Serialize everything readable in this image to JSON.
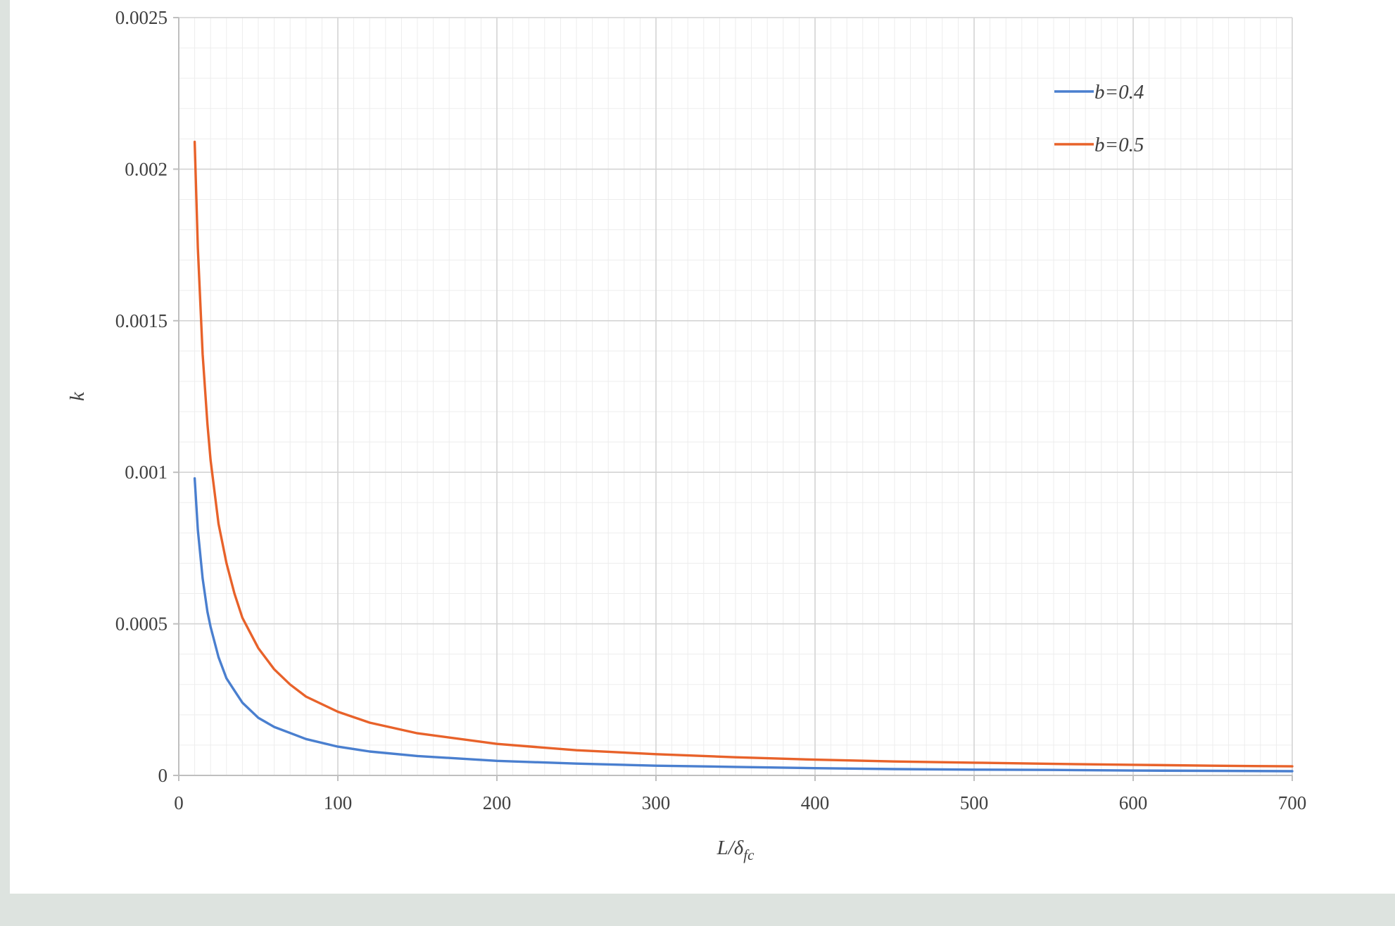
{
  "chart_data": {
    "type": "line",
    "xlabel_main": "L/δ",
    "xlabel_sub": "fc",
    "ylabel": "k",
    "xlim": [
      0,
      700
    ],
    "ylim": [
      0,
      0.0025
    ],
    "x_ticks": [
      "0",
      "100",
      "200",
      "300",
      "400",
      "500",
      "600",
      "700"
    ],
    "y_ticks": [
      "0",
      "0.0005",
      "0.001",
      "0.0015",
      "0.002",
      "0.0025"
    ],
    "grid": true,
    "legend_position": "top-right",
    "series": [
      {
        "name": "b=0.4",
        "color": "#4a7fcf",
        "x": [
          10,
          12,
          15,
          18,
          20,
          25,
          30,
          35,
          40,
          50,
          60,
          70,
          80,
          100,
          120,
          150,
          200,
          250,
          300,
          350,
          400,
          450,
          500,
          550,
          600,
          650,
          700
        ],
        "y": [
          0.00098,
          0.00081,
          0.00065,
          0.00054,
          0.00049,
          0.00039,
          0.00032,
          0.00028,
          0.00024,
          0.00019,
          0.00016,
          0.00014,
          0.00012,
          9.5e-05,
          7.9e-05,
          6.4e-05,
          4.8e-05,
          3.9e-05,
          3.2e-05,
          2.8e-05,
          2.4e-05,
          2.1e-05,
          1.9e-05,
          1.8e-05,
          1.6e-05,
          1.5e-05,
          1.4e-05
        ]
      },
      {
        "name": "b=0.5",
        "color": "#e8622a",
        "x": [
          10,
          12,
          15,
          18,
          20,
          25,
          30,
          35,
          40,
          50,
          60,
          70,
          80,
          100,
          120,
          150,
          200,
          250,
          300,
          350,
          400,
          450,
          500,
          550,
          600,
          650,
          700
        ],
        "y": [
          0.00209,
          0.00174,
          0.00139,
          0.00116,
          0.00104,
          0.00083,
          0.0007,
          0.0006,
          0.00052,
          0.00042,
          0.00035,
          0.0003,
          0.00026,
          0.00021,
          0.000174,
          0.000139,
          0.000104,
          8.3e-05,
          7e-05,
          6e-05,
          5.2e-05,
          4.6e-05,
          4.2e-05,
          3.8e-05,
          3.5e-05,
          3.2e-05,
          3e-05
        ]
      }
    ]
  }
}
